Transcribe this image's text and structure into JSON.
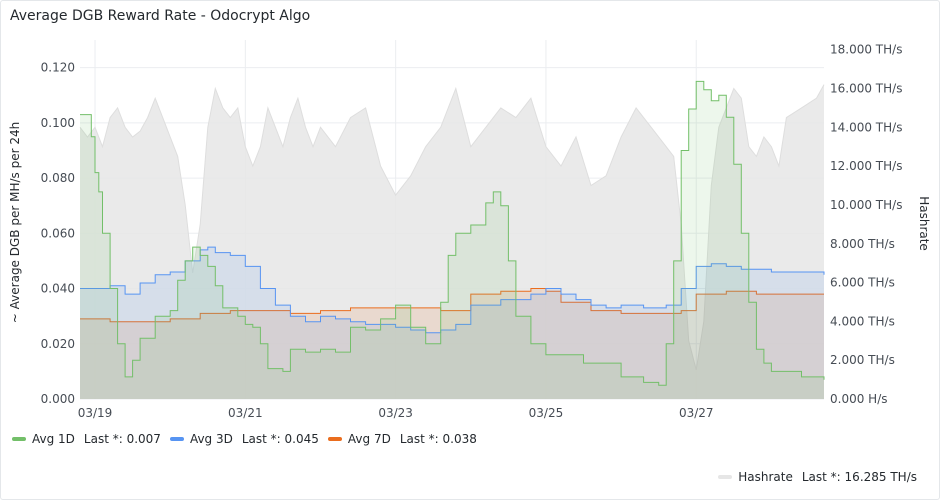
{
  "panel": {
    "title": "Average DGB Reward Rate - Odocrypt Algo"
  },
  "colors": {
    "avg1d": "#73bf69",
    "avg3d": "#5794f2",
    "avg7d": "#ea6d1e",
    "hashrate": "#c8c8c8"
  },
  "legend": {
    "series": [
      {
        "name": "Avg 1D",
        "last": "Last *: 0.007",
        "color": "#73bf69"
      },
      {
        "name": "Avg 3D",
        "last": "Last *: 0.045",
        "color": "#5794f2"
      },
      {
        "name": "Avg 7D",
        "last": "Last *: 0.038",
        "color": "#ea6d1e"
      }
    ],
    "hashrate": {
      "name": "Hashrate",
      "last": "Last *: 16.285 TH/s",
      "color": "#e6e6e6"
    }
  },
  "chart_data": {
    "type": "line",
    "title": "Average DGB Reward Rate - Odocrypt Algo",
    "ylabel": "~ Average DGB per MH/s per 24h",
    "y2label": "Hashrate",
    "ylim": [
      0,
      0.13
    ],
    "y2lim": [
      0,
      18.5
    ],
    "x_range_days": [
      18.8,
      28.7
    ],
    "y_ticks": [
      "0.000",
      "0.020",
      "0.040",
      "0.060",
      "0.080",
      "0.100",
      "0.120"
    ],
    "y_tick_values": [
      0,
      0.02,
      0.04,
      0.06,
      0.08,
      0.1,
      0.12
    ],
    "y2_ticks": [
      "0.000 H/s",
      "2.000 TH/s",
      "4.000 TH/s",
      "6.000 TH/s",
      "8.000 TH/s",
      "10.000 TH/s",
      "12.000 TH/s",
      "14.000 TH/s",
      "16.000 TH/s",
      "18.000 TH/s"
    ],
    "y2_tick_values": [
      0,
      2,
      4,
      6,
      8,
      10,
      12,
      14,
      16,
      18
    ],
    "x_ticks": [
      "03/19",
      "03/21",
      "03/23",
      "03/25",
      "03/27"
    ],
    "x_tick_days": [
      19,
      21,
      23,
      25,
      27
    ],
    "grid": true,
    "legend_position": "bottom",
    "series": [
      {
        "name": "Avg 1D",
        "axis": "left",
        "x": [
          18.8,
          18.95,
          19.0,
          19.05,
          19.1,
          19.2,
          19.3,
          19.4,
          19.5,
          19.6,
          19.8,
          20.0,
          20.1,
          20.2,
          20.3,
          20.4,
          20.5,
          20.6,
          20.7,
          20.9,
          21.0,
          21.1,
          21.2,
          21.3,
          21.5,
          21.6,
          21.8,
          22.0,
          22.2,
          22.4,
          22.6,
          22.8,
          23.0,
          23.2,
          23.4,
          23.6,
          23.7,
          23.8,
          24.0,
          24.2,
          24.3,
          24.4,
          24.5,
          24.6,
          24.8,
          25.0,
          25.5,
          26.0,
          26.3,
          26.5,
          26.6,
          26.7,
          26.8,
          26.9,
          27.0,
          27.1,
          27.2,
          27.3,
          27.4,
          27.5,
          27.6,
          27.7,
          27.8,
          27.9,
          28.0,
          28.2,
          28.4,
          28.7
        ],
        "values": [
          0.103,
          0.095,
          0.082,
          0.075,
          0.06,
          0.04,
          0.02,
          0.008,
          0.014,
          0.022,
          0.03,
          0.032,
          0.043,
          0.05,
          0.055,
          0.052,
          0.048,
          0.041,
          0.033,
          0.03,
          0.027,
          0.026,
          0.02,
          0.011,
          0.01,
          0.018,
          0.017,
          0.018,
          0.017,
          0.026,
          0.025,
          0.029,
          0.034,
          0.026,
          0.02,
          0.035,
          0.052,
          0.06,
          0.063,
          0.071,
          0.075,
          0.07,
          0.05,
          0.03,
          0.02,
          0.016,
          0.013,
          0.008,
          0.006,
          0.005,
          0.02,
          0.05,
          0.09,
          0.105,
          0.115,
          0.112,
          0.108,
          0.11,
          0.102,
          0.085,
          0.06,
          0.035,
          0.018,
          0.013,
          0.01,
          0.01,
          0.008,
          0.007
        ]
      },
      {
        "name": "Avg 3D",
        "axis": "left",
        "x": [
          18.8,
          19.0,
          19.2,
          19.4,
          19.6,
          19.8,
          20.0,
          20.2,
          20.4,
          20.5,
          20.6,
          20.8,
          21.0,
          21.2,
          21.4,
          21.6,
          21.8,
          22.0,
          22.2,
          22.4,
          22.6,
          22.8,
          23.0,
          23.2,
          23.4,
          23.6,
          23.8,
          24.0,
          24.4,
          24.8,
          25.0,
          25.2,
          25.4,
          25.6,
          25.8,
          26.0,
          26.3,
          26.6,
          26.8,
          27.0,
          27.2,
          27.4,
          27.6,
          27.8,
          28.0,
          28.3,
          28.7
        ],
        "values": [
          0.04,
          0.04,
          0.041,
          0.038,
          0.042,
          0.045,
          0.046,
          0.05,
          0.054,
          0.055,
          0.053,
          0.052,
          0.048,
          0.04,
          0.034,
          0.03,
          0.028,
          0.03,
          0.029,
          0.028,
          0.027,
          0.027,
          0.026,
          0.025,
          0.024,
          0.025,
          0.027,
          0.034,
          0.036,
          0.038,
          0.04,
          0.038,
          0.036,
          0.034,
          0.033,
          0.034,
          0.033,
          0.034,
          0.04,
          0.048,
          0.049,
          0.048,
          0.047,
          0.047,
          0.046,
          0.046,
          0.045
        ]
      },
      {
        "name": "Avg 7D",
        "axis": "left",
        "x": [
          18.8,
          19.2,
          19.6,
          20.0,
          20.4,
          20.8,
          21.2,
          21.6,
          22.0,
          22.4,
          22.8,
          23.2,
          23.6,
          24.0,
          24.4,
          24.8,
          25.0,
          25.2,
          25.6,
          26.0,
          26.4,
          26.8,
          27.0,
          27.4,
          27.8,
          28.2,
          28.7
        ],
        "values": [
          0.029,
          0.028,
          0.028,
          0.029,
          0.031,
          0.032,
          0.032,
          0.031,
          0.032,
          0.033,
          0.033,
          0.033,
          0.032,
          0.038,
          0.039,
          0.04,
          0.039,
          0.035,
          0.032,
          0.031,
          0.031,
          0.032,
          0.038,
          0.039,
          0.038,
          0.038,
          0.038
        ]
      },
      {
        "name": "Hashrate",
        "axis": "right",
        "x": [
          18.8,
          18.9,
          19.0,
          19.1,
          19.2,
          19.3,
          19.4,
          19.5,
          19.6,
          19.7,
          19.8,
          19.9,
          20.0,
          20.1,
          20.2,
          20.3,
          20.4,
          20.5,
          20.6,
          20.7,
          20.8,
          20.9,
          21.0,
          21.1,
          21.2,
          21.3,
          21.4,
          21.5,
          21.6,
          21.7,
          21.8,
          21.9,
          22.0,
          22.2,
          22.4,
          22.6,
          22.8,
          23.0,
          23.2,
          23.4,
          23.6,
          23.8,
          24.0,
          24.2,
          24.4,
          24.6,
          24.8,
          25.0,
          25.2,
          25.4,
          25.6,
          25.8,
          26.0,
          26.2,
          26.4,
          26.6,
          26.7,
          26.8,
          26.9,
          27.0,
          27.1,
          27.2,
          27.3,
          27.4,
          27.5,
          27.6,
          27.7,
          27.8,
          27.9,
          28.0,
          28.1,
          28.2,
          28.4,
          28.6,
          28.7
        ],
        "values": [
          14.0,
          13.5,
          14.0,
          13.0,
          14.5,
          15.0,
          14.0,
          13.5,
          13.8,
          14.5,
          15.5,
          14.5,
          13.5,
          12.5,
          10.0,
          6.5,
          9.0,
          14.0,
          16.0,
          15.0,
          14.5,
          15.0,
          13.0,
          12.0,
          13.0,
          15.0,
          14.0,
          13.0,
          14.5,
          15.5,
          14.0,
          13.0,
          14.0,
          13.0,
          14.5,
          15.0,
          12.0,
          10.5,
          11.5,
          13.0,
          14.0,
          16.0,
          13.0,
          14.0,
          15.0,
          14.5,
          15.5,
          13.0,
          12.0,
          13.5,
          11.0,
          11.5,
          13.5,
          15.0,
          14.0,
          13.0,
          12.5,
          9.0,
          3.0,
          1.5,
          4.0,
          11.0,
          14.0,
          15.0,
          16.0,
          15.5,
          13.0,
          12.5,
          13.5,
          13.0,
          12.0,
          14.5,
          15.0,
          15.5,
          16.2
        ]
      }
    ]
  }
}
